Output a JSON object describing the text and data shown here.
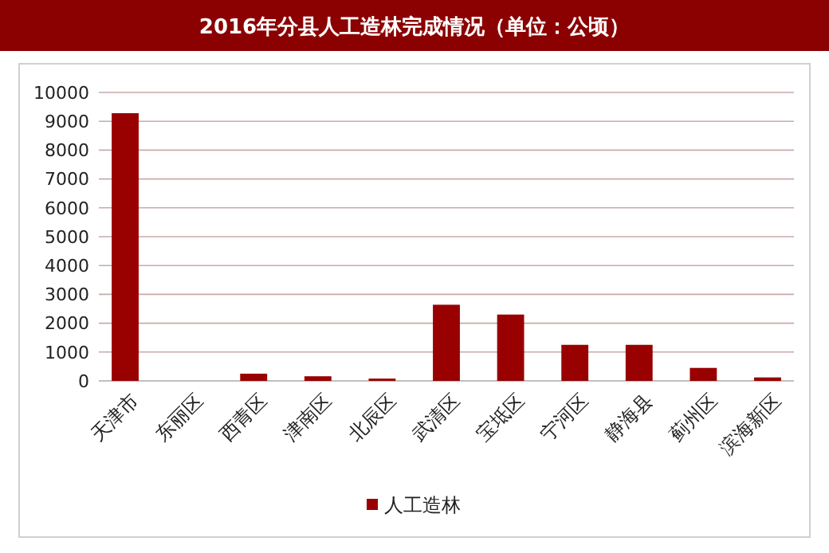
{
  "chart_data": {
    "type": "bar",
    "title": "2016年分县人工造林完成情况（单位：公顷）",
    "categories": [
      "天津市",
      "东丽区",
      "西青区",
      "津南区",
      "北辰区",
      "武清区",
      "宝坻区",
      "宁河区",
      "静海县",
      "蓟州区",
      "滨海新区"
    ],
    "series": [
      {
        "name": "人工造林",
        "color": "#990000",
        "values": [
          9280,
          null,
          250,
          160,
          80,
          2640,
          2300,
          1250,
          1250,
          450,
          120
        ]
      }
    ],
    "ylim": [
      0,
      10000
    ],
    "yticks": [
      0,
      1000,
      2000,
      3000,
      4000,
      5000,
      6000,
      7000,
      8000,
      9000,
      10000
    ],
    "grid": "y",
    "legend": "bottom"
  }
}
